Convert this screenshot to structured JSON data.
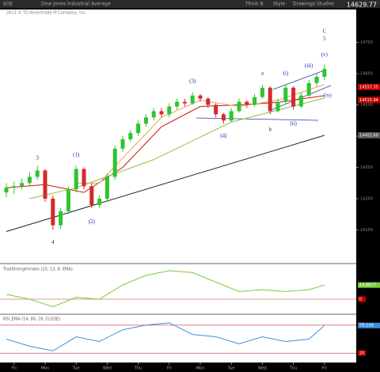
{
  "header": {
    "symbol": "$DJI",
    "description": "Dow Jones Industrial Average",
    "copyright": "2013 © TD Ameritrade IP Company, Inc.",
    "last": "14629.77",
    "toolbar": [
      "Think B.",
      "Style",
      "Drawings",
      "Studies"
    ]
  },
  "chart_data": {
    "type": "candlestick",
    "open": [
      14220,
      14235,
      14240,
      14250,
      14270,
      14290,
      14200,
      14115,
      14160,
      14230,
      14295,
      14240,
      14180,
      14200,
      14270,
      14360,
      14390,
      14410,
      14440,
      14460,
      14480,
      14470,
      14495,
      14510,
      14505,
      14530,
      14520,
      14500,
      14470,
      14450,
      14480,
      14510,
      14500,
      14525,
      14555,
      14480,
      14510,
      14555,
      14495,
      14530,
      14570,
      14590
    ],
    "high": [
      14250,
      14255,
      14265,
      14285,
      14305,
      14295,
      14210,
      14170,
      14240,
      14305,
      14300,
      14250,
      14210,
      14280,
      14370,
      14400,
      14420,
      14450,
      14470,
      14490,
      14490,
      14505,
      14520,
      14520,
      14540,
      14535,
      14525,
      14505,
      14475,
      14490,
      14520,
      14515,
      14535,
      14565,
      14560,
      14520,
      14565,
      14560,
      14540,
      14580,
      14600,
      14630
    ],
    "low": [
      14205,
      14215,
      14230,
      14240,
      14260,
      14190,
      14100,
      14105,
      14150,
      14220,
      14230,
      14170,
      14170,
      14190,
      14260,
      14350,
      14380,
      14400,
      14430,
      14450,
      14460,
      14460,
      14485,
      14495,
      14500,
      14510,
      14490,
      14460,
      14440,
      14445,
      14475,
      14490,
      14495,
      14520,
      14470,
      14475,
      14505,
      14485,
      14490,
      14525,
      14560,
      14580
    ],
    "close": [
      14235,
      14240,
      14250,
      14270,
      14290,
      14200,
      14115,
      14160,
      14230,
      14295,
      14240,
      14180,
      14200,
      14270,
      14360,
      14390,
      14410,
      14440,
      14460,
      14480,
      14470,
      14495,
      14510,
      14505,
      14530,
      14520,
      14500,
      14470,
      14450,
      14480,
      14510,
      14500,
      14525,
      14555,
      14480,
      14510,
      14555,
      14495,
      14530,
      14570,
      14590,
      14615
    ],
    "up_color": "#2ec42e",
    "down_color": "#d42a2a",
    "ylim": [
      14000,
      14785
    ],
    "yticks": [
      14100,
      14200,
      14300,
      14400,
      14500,
      14600,
      14700
    ],
    "xticks": [
      {
        "value": 1,
        "label": "Fri"
      },
      {
        "value": 5,
        "label": "Mon"
      },
      {
        "value": 9,
        "label": "Tue"
      },
      {
        "value": 13,
        "label": "Wed"
      },
      {
        "value": 17,
        "label": "Thu"
      },
      {
        "value": 21,
        "label": "Fri"
      },
      {
        "value": 25,
        "label": "Mon"
      },
      {
        "value": 29,
        "label": "Tue"
      },
      {
        "value": 33,
        "label": "Wed"
      },
      {
        "value": 37,
        "label": "Thu"
      },
      {
        "value": 41,
        "label": "Fri"
      }
    ],
    "overlays": [
      {
        "color": "#d01010",
        "x": [
          0,
          5,
          10,
          15,
          20,
          25,
          30,
          35,
          41
        ],
        "values": [
          14235,
          14245,
          14220,
          14300,
          14430,
          14495,
          14500,
          14508,
          14530
        ]
      },
      {
        "color": "#f0a060",
        "x": [
          9,
          12,
          15,
          20,
          25,
          30,
          35,
          41
        ],
        "values": [
          14250,
          14250,
          14330,
          14460,
          14515,
          14495,
          14515,
          14565
        ]
      },
      {
        "color": "#90c040",
        "x": [
          3,
          9,
          19,
          29,
          41
        ],
        "values": [
          14200,
          14235,
          14325,
          14445,
          14522
        ]
      },
      {
        "color": "#222222",
        "x": [
          0,
          41
        ],
        "values": [
          14095,
          14402.69
        ]
      }
    ],
    "price_markers": [
      {
        "value": 14557.35,
        "color": "#c00000"
      },
      {
        "value": 14515.94,
        "color": "#c00000"
      },
      {
        "value": 14402.69,
        "color": "#555555"
      }
    ],
    "annotations": [
      {
        "text": "3",
        "x": 4,
        "y": 14330
      },
      {
        "text": "4",
        "x": 6,
        "y": 14060
      },
      {
        "text": "(1)",
        "x": 9,
        "y": 14340
      },
      {
        "text": "(2)",
        "x": 11,
        "y": 14125
      },
      {
        "text": "(3)",
        "x": 24,
        "y": 14575
      },
      {
        "text": "(4)",
        "x": 28,
        "y": 14400
      },
      {
        "text": "a",
        "x": 33,
        "y": 14600
      },
      {
        "text": "b",
        "x": 34,
        "y": 14420
      },
      {
        "text": "(i)",
        "x": 36,
        "y": 14600
      },
      {
        "text": "(ii)",
        "x": 37,
        "y": 14440
      },
      {
        "text": "(iii)",
        "x": 39,
        "y": 14625
      },
      {
        "text": "(iv)",
        "x": 41.4,
        "y": 14530
      },
      {
        "text": "(v)",
        "x": 41,
        "y": 14660
      },
      {
        "text": "C",
        "x": 41,
        "y": 14735
      },
      {
        "text": "5",
        "x": 41,
        "y": 14710
      }
    ],
    "indicators": [
      {
        "title": "TrueStrengthIndex (25, 13, 8, EMA)",
        "color": "#7ccc3c",
        "x": [
          0,
          3,
          6,
          9,
          12,
          15,
          18,
          21,
          24,
          27,
          30,
          33,
          36,
          39,
          41
        ],
        "values": [
          5,
          0,
          -8,
          2,
          0,
          15,
          25,
          30,
          28,
          18,
          8,
          10,
          8,
          10,
          14.8677
        ],
        "value_label": "14.8677",
        "ylim": [
          -15,
          35
        ],
        "yticks": [
          0
        ]
      },
      {
        "title": "RSI_EMA (14, 80, 20, CLOSE)",
        "color": "#3d8fe0",
        "x": [
          0,
          3,
          6,
          9,
          12,
          15,
          18,
          21,
          24,
          27,
          30,
          33,
          36,
          39,
          41
        ],
        "values": [
          50,
          35,
          25,
          55,
          45,
          70,
          80,
          85,
          60,
          55,
          40,
          55,
          45,
          50,
          79.239
        ],
        "value_label": "79.239",
        "ylim": [
          0,
          100
        ],
        "yticks": [
          20,
          80
        ]
      }
    ]
  }
}
